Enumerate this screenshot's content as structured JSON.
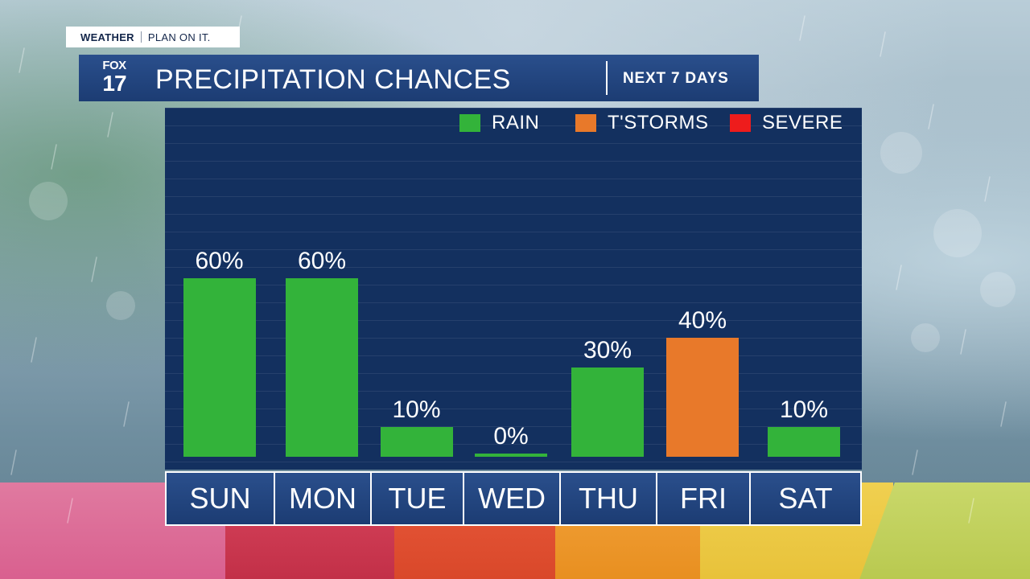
{
  "brand": {
    "weather": "WEATHER",
    "tagline": "PLAN ON IT.",
    "logo_top": "FOX",
    "logo_num": "17"
  },
  "header": {
    "title": "PRECIPITATION CHANCES",
    "subtitle": "NEXT 7 DAYS"
  },
  "colors": {
    "rain": "#33b33a",
    "tstorms": "#e8792a",
    "severe": "#ee1c1c",
    "panel": "#13305f",
    "bar_header": "#1f427a"
  },
  "chart_data": {
    "type": "bar",
    "title": "PRECIPITATION CHANCES",
    "subtitle": "NEXT 7 DAYS",
    "categories": [
      "SUN",
      "MON",
      "TUE",
      "WED",
      "THU",
      "FRI",
      "SAT"
    ],
    "values": [
      60,
      60,
      10,
      0,
      30,
      40,
      10
    ],
    "value_labels": [
      "60%",
      "60%",
      "10%",
      "0%",
      "30%",
      "40%",
      "10%"
    ],
    "types": [
      "rain",
      "rain",
      "rain",
      "rain",
      "rain",
      "tstorms",
      "rain"
    ],
    "unit": "%",
    "ylim": [
      0,
      100
    ],
    "legend": [
      {
        "key": "rain",
        "label": "RAIN"
      },
      {
        "key": "tstorms",
        "label": "T'STORMS"
      },
      {
        "key": "severe",
        "label": "SEVERE"
      }
    ],
    "legend_position": "top-right"
  }
}
